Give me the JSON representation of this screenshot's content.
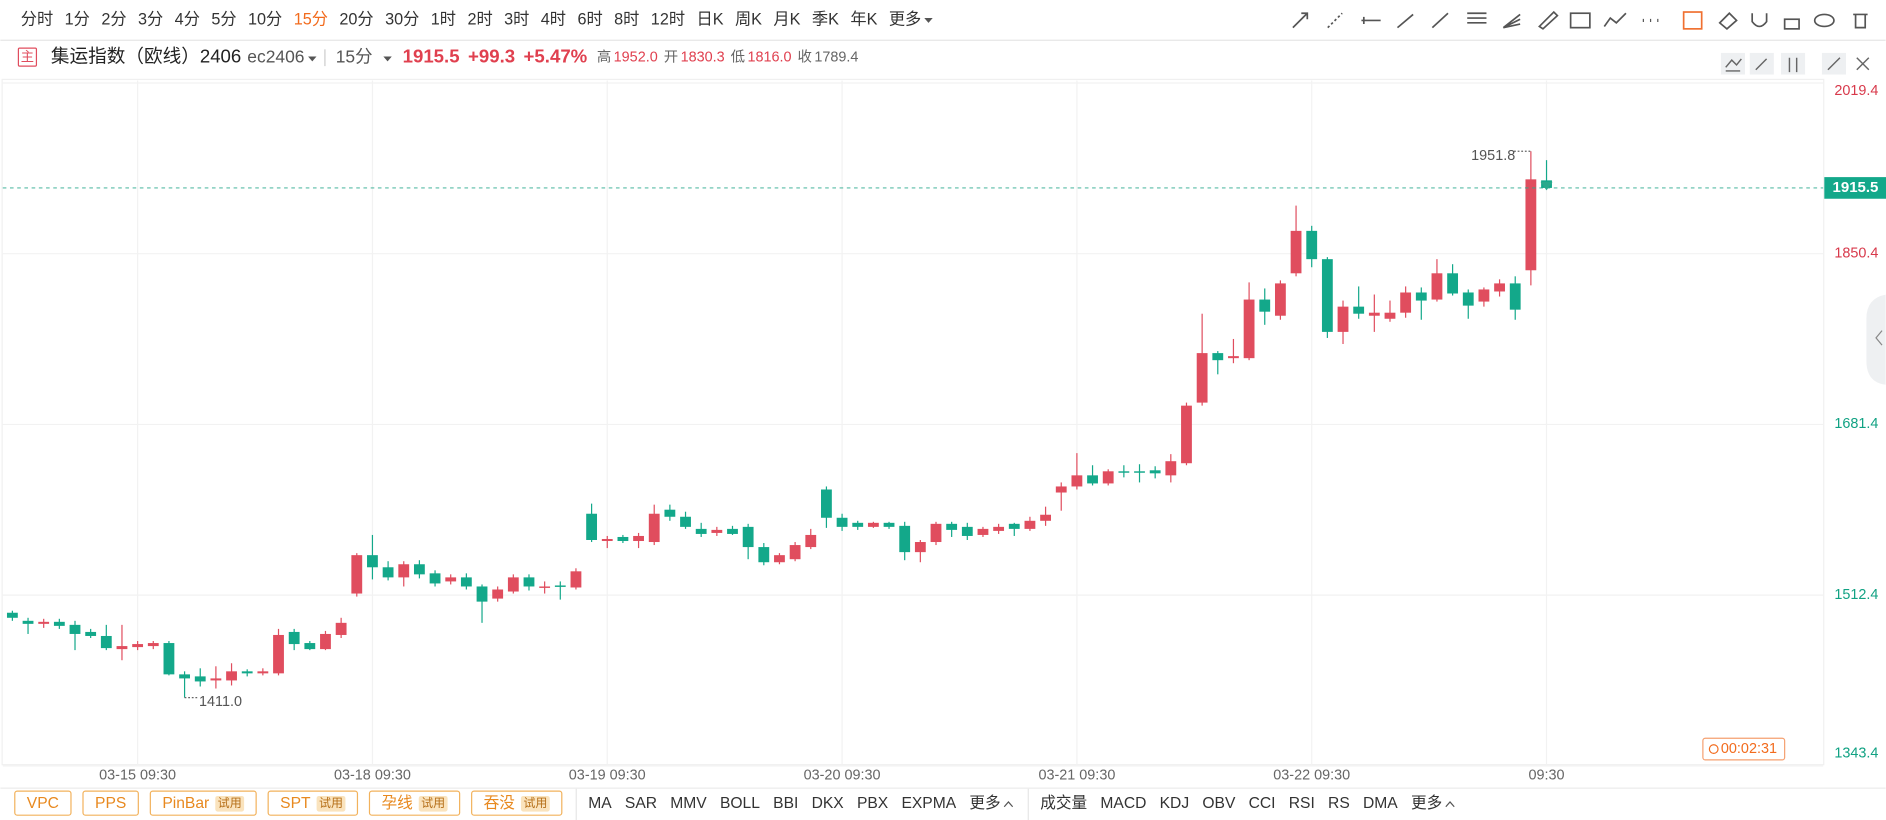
{
  "toolbar": {
    "intervals": [
      "分时",
      "1分",
      "2分",
      "3分",
      "4分",
      "5分",
      "10分",
      "15分",
      "20分",
      "30分",
      "1时",
      "2时",
      "3时",
      "4时",
      "6时",
      "8时",
      "12时",
      "日K",
      "周K",
      "月K",
      "季K",
      "年K",
      "更多"
    ],
    "active_index": 7
  },
  "header": {
    "main_badge": "主",
    "title": "集运指数（欧线）2406",
    "symbol": "ec2406",
    "interval": "15分",
    "price": "1915.5",
    "change": "+99.3",
    "change_pct": "+5.47%",
    "stats": [
      {
        "label": "高",
        "value": "1952.0"
      },
      {
        "label": "开",
        "value": "1830.3"
      },
      {
        "label": "低",
        "value": "1816.0"
      },
      {
        "label": "收",
        "value": "1789.4"
      }
    ]
  },
  "chart_data": {
    "type": "candlestick",
    "categories": [
      null,
      null,
      null,
      null,
      null,
      null,
      null,
      null,
      "03-15 09:30",
      null,
      null,
      null,
      null,
      null,
      null,
      null,
      null,
      null,
      null,
      null,
      null,
      null,
      null,
      "03-18 09:30",
      null,
      null,
      null,
      null,
      null,
      null,
      null,
      null,
      null,
      null,
      null,
      null,
      null,
      null,
      "03-19 09:30",
      null,
      null,
      null,
      null,
      null,
      null,
      null,
      null,
      null,
      null,
      null,
      null,
      null,
      null,
      "03-20 09:30",
      null,
      null,
      null,
      null,
      null,
      null,
      null,
      null,
      null,
      null,
      null,
      null,
      null,
      null,
      "03-21 09:30",
      null,
      null,
      null,
      null,
      null,
      null,
      null,
      null,
      null,
      null,
      null,
      null,
      null,
      null,
      "03-22 09:30",
      null,
      null,
      null,
      null,
      null,
      null,
      null,
      null,
      null,
      null,
      null,
      null,
      null,
      null,
      "09:30"
    ],
    "open": [
      1495,
      1487,
      1484,
      1486,
      1483,
      1476,
      1472,
      1459,
      1461,
      1462,
      1465,
      1434,
      1432,
      1428,
      1428,
      1437,
      1435,
      1435,
      1476,
      1465,
      1459,
      1473,
      1514,
      1552,
      1540,
      1530,
      1543,
      1534,
      1526,
      1530,
      1521,
      1509,
      1516,
      1530,
      1520,
      1522,
      1520,
      1593,
      1566,
      1570,
      1566,
      1565,
      1597,
      1590,
      1578,
      1574,
      1578,
      1580,
      1560,
      1545,
      1548,
      1560,
      1617,
      1589,
      1584,
      1580,
      1584,
      1581,
      1555,
      1565,
      1583,
      1580,
      1572,
      1576,
      1583,
      1578,
      1586,
      1614,
      1620,
      1631,
      1623,
      1635,
      1635,
      1636,
      1631,
      1643,
      1703,
      1752,
      1747,
      1747,
      1805,
      1789,
      1831,
      1873,
      1845,
      1773,
      1798,
      1789,
      1786,
      1792,
      1812,
      1805,
      1831,
      1812,
      1803,
      1813,
      1821,
      1834,
      1923
    ],
    "high": [
      1497,
      1490,
      1489,
      1489,
      1487,
      1479,
      1483,
      1483,
      1467,
      1467,
      1467,
      1437,
      1440,
      1442,
      1445,
      1439,
      1440,
      1479,
      1479,
      1467,
      1477,
      1490,
      1554,
      1572,
      1546,
      1546,
      1547,
      1537,
      1533,
      1534,
      1523,
      1521,
      1533,
      1533,
      1526,
      1526,
      1539,
      1603,
      1571,
      1572,
      1574,
      1602,
      1602,
      1595,
      1584,
      1580,
      1581,
      1583,
      1564,
      1554,
      1565,
      1578,
      1620,
      1593,
      1586,
      1585,
      1585,
      1585,
      1567,
      1585,
      1585,
      1584,
      1580,
      1583,
      1584,
      1590,
      1600,
      1624,
      1653,
      1641,
      1637,
      1641,
      1642,
      1640,
      1652,
      1703,
      1791,
      1754,
      1766,
      1822,
      1816,
      1824,
      1898,
      1878,
      1847,
      1804,
      1818,
      1810,
      1804,
      1818,
      1817,
      1845,
      1840,
      1815,
      1817,
      1825,
      1828,
      1951.8,
      1943
    ],
    "low": [
      1487,
      1474,
      1480,
      1479,
      1458,
      1470,
      1458,
      1448,
      1458,
      1459,
      1433,
      1411.0,
      1422,
      1420,
      1423,
      1432,
      1433,
      1433,
      1458,
      1458,
      1458,
      1470,
      1511,
      1528,
      1527,
      1521,
      1529,
      1521,
      1523,
      1518,
      1485,
      1506,
      1514,
      1517,
      1514,
      1508,
      1518,
      1565,
      1559,
      1564,
      1559,
      1562,
      1586,
      1578,
      1570,
      1571,
      1572,
      1548,
      1542,
      1543,
      1546,
      1558,
      1579,
      1576,
      1577,
      1579,
      1578,
      1547,
      1545,
      1562,
      1570,
      1567,
      1570,
      1573,
      1571,
      1576,
      1581,
      1596,
      1617,
      1621,
      1621,
      1629,
      1624,
      1628,
      1624,
      1641,
      1700,
      1731,
      1742,
      1745,
      1780,
      1785,
      1828,
      1837,
      1767,
      1761,
      1786,
      1773,
      1783,
      1787,
      1785,
      1803,
      1809,
      1786,
      1798,
      1808,
      1785,
      1819,
      1915.5
    ],
    "close": [
      1490,
      1484,
      1486,
      1482,
      1474,
      1472,
      1460,
      1462,
      1464,
      1465,
      1434,
      1430,
      1427,
      1430,
      1437,
      1435,
      1437,
      1473,
      1464,
      1459,
      1474,
      1485,
      1552,
      1540,
      1530,
      1543,
      1533,
      1524,
      1530,
      1521,
      1506,
      1518,
      1530,
      1521,
      1521,
      1521,
      1536,
      1567,
      1568,
      1566,
      1571,
      1593,
      1590,
      1580,
      1573,
      1577,
      1573,
      1560,
      1545,
      1552,
      1562,
      1572,
      1589,
      1580,
      1580,
      1584,
      1580,
      1555,
      1565,
      1583,
      1577,
      1571,
      1578,
      1580,
      1578,
      1586,
      1592,
      1620,
      1631,
      1623,
      1635,
      1634,
      1634,
      1633,
      1645,
      1700,
      1752,
      1745,
      1749,
      1805,
      1793,
      1821,
      1873,
      1845,
      1773,
      1798,
      1791,
      1792,
      1792,
      1812,
      1804,
      1831,
      1811,
      1799,
      1815,
      1821,
      1795,
      1924,
      1915.5
    ],
    "ylim": [
      1343.4,
      2019.4
    ],
    "yticks": [
      1343.4,
      1512.4,
      1681.4,
      1850.4,
      2019.4
    ],
    "grid": true,
    "up_color": "#e04d5e",
    "down_color": "#13a88a",
    "max_label": "1951.8",
    "min_label": "1411.0",
    "countdown": "00:02:31"
  },
  "bottom": {
    "patterns": [
      {
        "name": "VPC"
      },
      {
        "name": "PPS"
      },
      {
        "name": "PinBar",
        "badge": "试用"
      },
      {
        "name": "SPT",
        "badge": "试用"
      },
      {
        "name": "孕线",
        "badge": "试用"
      },
      {
        "name": "吞没",
        "badge": "试用"
      }
    ],
    "main_indicators": [
      "MA",
      "SAR",
      "MMV",
      "BOLL",
      "BBI",
      "DKX",
      "PBX",
      "EXPMA",
      "更多"
    ],
    "sub_indicators": [
      "成交量",
      "MACD",
      "KDJ",
      "OBV",
      "CCI",
      "RSI",
      "RS",
      "DMA",
      "更多"
    ]
  }
}
